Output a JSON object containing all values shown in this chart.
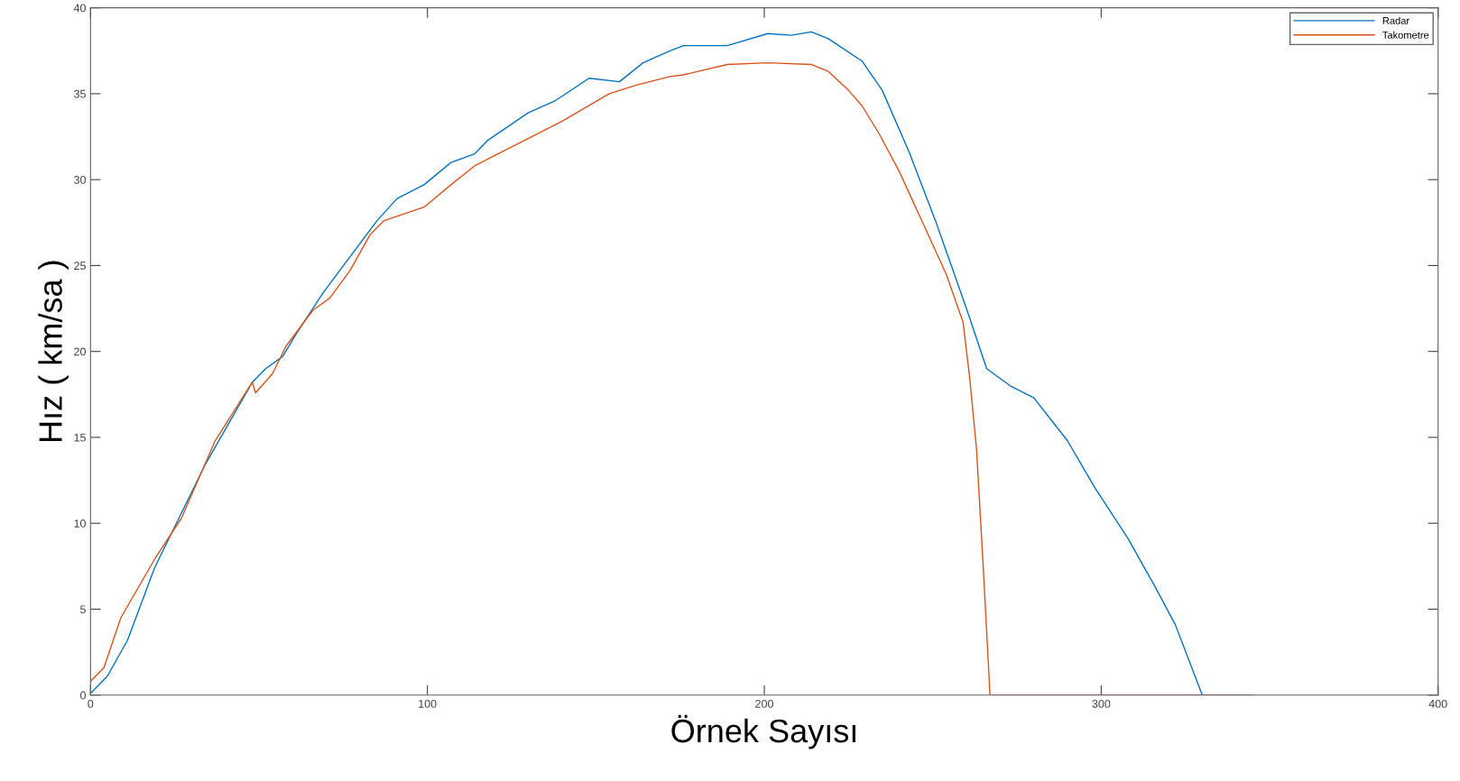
{
  "chart_data": {
    "type": "line",
    "xlabel": "Örnek Sayısı",
    "ylabel": "Hız ( km/sa )",
    "xlim": [
      0,
      400
    ],
    "xticks": [
      0,
      100,
      200,
      300,
      400
    ],
    "ylim": [
      0,
      40
    ],
    "yticks": [
      0,
      5,
      10,
      15,
      20,
      25,
      30,
      35,
      40
    ],
    "grid": false,
    "legend": "top right",
    "marker": "none",
    "line_style": "solid",
    "series": [
      {
        "name": "Radar",
        "color": "#0072bd",
        "x": [
          0,
          5,
          11,
          19,
          27,
          34,
          41,
          48,
          52,
          57,
          61,
          69,
          77,
          85,
          91,
          99,
          107,
          114,
          118,
          130,
          138,
          148,
          157,
          164,
          172,
          176,
          189,
          201,
          208,
          214,
          219,
          229,
          235,
          243,
          251,
          260,
          266,
          273,
          280,
          290,
          298,
          308,
          316,
          322,
          330,
          345
        ],
        "values": [
          0.1,
          1.1,
          3.2,
          7.4,
          10.6,
          13.4,
          15.8,
          18.2,
          19,
          19.7,
          21,
          23.4,
          25.5,
          27.6,
          28.9,
          29.7,
          31,
          31.5,
          32.3,
          33.9,
          34.6,
          35.9,
          35.7,
          36.8,
          37.5,
          37.8,
          37.8,
          38.5,
          38.4,
          38.6,
          38.2,
          36.9,
          35.2,
          31.6,
          27.5,
          22.5,
          19,
          18,
          17.3,
          14.8,
          12.1,
          9.1,
          6.3,
          4.1,
          0,
          0
        ]
      },
      {
        "name": "Takometre",
        "color": "#d95319",
        "x": [
          0,
          4,
          9,
          19,
          27,
          37,
          48,
          49,
          54,
          58,
          66,
          71,
          77,
          83,
          87,
          99,
          107,
          114,
          127,
          140,
          154,
          162,
          172,
          176,
          189,
          201,
          214,
          219,
          225,
          229,
          234,
          240,
          247,
          254,
          259,
          261,
          263,
          265,
          267,
          345
        ],
        "values": [
          0.8,
          1.6,
          4.5,
          7.9,
          10.3,
          14.8,
          18.2,
          17.6,
          18.7,
          20.3,
          22.4,
          23.1,
          24.7,
          26.8,
          27.6,
          28.4,
          29.7,
          30.8,
          32.1,
          33.4,
          35,
          35.5,
          36,
          36.1,
          36.7,
          36.8,
          36.7,
          36.3,
          35.2,
          34.3,
          32.7,
          30.5,
          27.5,
          24.5,
          21.7,
          18.4,
          14.3,
          7.4,
          0,
          0
        ]
      }
    ]
  }
}
